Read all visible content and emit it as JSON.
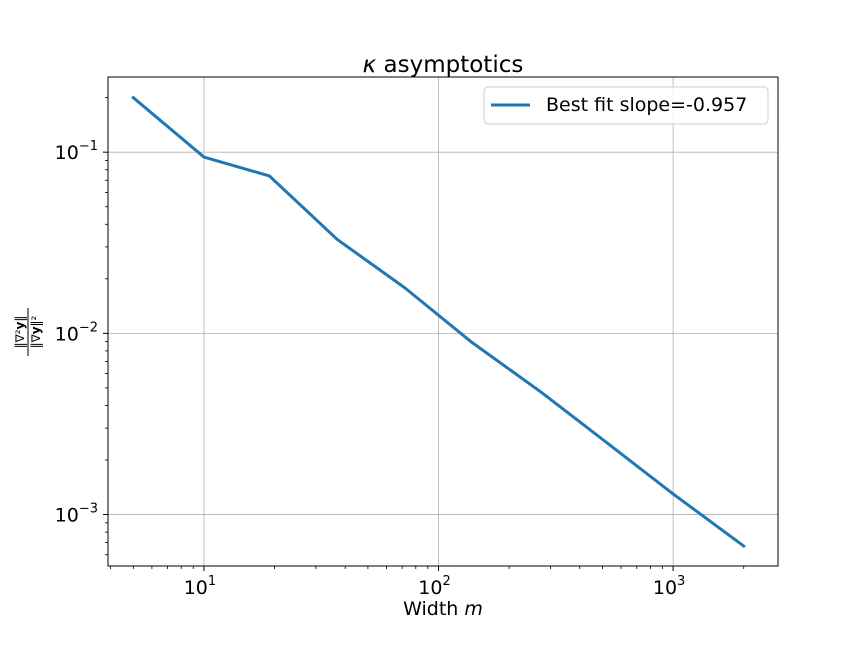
{
  "chart_data": {
    "type": "line",
    "title": "κ asymptotics",
    "xlabel": "Width m",
    "ylabel": "‖∇²y‖ / ‖∇y‖²",
    "xscale": "log",
    "yscale": "log",
    "xlim": [
      3.9,
      2800
    ],
    "ylim": [
      0.00052,
      0.26
    ],
    "grid": true,
    "legend": "top-right",
    "colors": {
      "series": "#1f77b4",
      "grid": "#b0b0b0"
    },
    "x_ticks": [
      {
        "value": 10,
        "base": "10",
        "exp": "1"
      },
      {
        "value": 100,
        "base": "10",
        "exp": "2"
      },
      {
        "value": 1000,
        "base": "10",
        "exp": "3"
      }
    ],
    "y_ticks": [
      {
        "value": 0.1,
        "base": "10",
        "exp": "−1"
      },
      {
        "value": 0.01,
        "base": "10",
        "exp": "−2"
      },
      {
        "value": 0.001,
        "base": "10",
        "exp": "−3"
      }
    ],
    "series": [
      {
        "name": "Best fit slope=-0.957",
        "x": [
          5,
          10,
          19,
          37,
          72,
          139,
          270,
          520,
          1000,
          2000
        ],
        "y": [
          0.2,
          0.094,
          0.074,
          0.033,
          0.0178,
          0.0089,
          0.0048,
          0.0025,
          0.0013,
          0.00067
        ]
      }
    ]
  }
}
